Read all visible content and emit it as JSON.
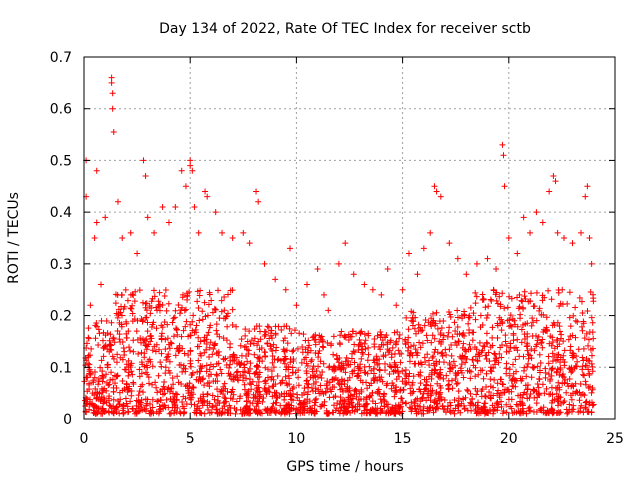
{
  "chart_data": {
    "type": "scatter",
    "title": "Day 134 of 2022, Rate Of TEC Index for receiver sctb",
    "xlabel": "GPS time / hours",
    "ylabel": "ROTI / TECUs",
    "xlim": [
      0,
      25
    ],
    "ylim": [
      0,
      0.7
    ],
    "x_ticks": [
      0,
      5,
      10,
      15,
      20,
      25
    ],
    "y_ticks": [
      0,
      0.1,
      0.2,
      0.3,
      0.4,
      0.5,
      0.6,
      0.7
    ],
    "x_tick_labels": [
      "0",
      "5",
      "10",
      "15",
      "20",
      "25"
    ],
    "y_tick_labels": [
      "0",
      "0.1",
      "0.2",
      "0.3",
      "0.4",
      "0.5",
      "0.6",
      "0.7"
    ],
    "grid": true,
    "marker": "+",
    "series_color": "#ff0000",
    "points": [
      [
        0.1,
        0.08
      ],
      [
        0.1,
        0.5
      ],
      [
        0.1,
        0.43
      ],
      [
        0.2,
        0.12
      ],
      [
        0.3,
        0.22
      ],
      [
        0.5,
        0.35
      ],
      [
        0.6,
        0.38
      ],
      [
        0.6,
        0.48
      ],
      [
        0.8,
        0.26
      ],
      [
        1.0,
        0.39
      ],
      [
        1.3,
        0.66
      ],
      [
        1.3,
        0.65
      ],
      [
        1.35,
        0.63
      ],
      [
        1.35,
        0.6
      ],
      [
        1.4,
        0.555
      ],
      [
        1.6,
        0.42
      ],
      [
        1.8,
        0.35
      ],
      [
        2.2,
        0.36
      ],
      [
        2.5,
        0.32
      ],
      [
        2.8,
        0.5
      ],
      [
        2.9,
        0.47
      ],
      [
        3.0,
        0.39
      ],
      [
        3.3,
        0.36
      ],
      [
        3.7,
        0.41
      ],
      [
        4.0,
        0.38
      ],
      [
        4.3,
        0.41
      ],
      [
        4.6,
        0.48
      ],
      [
        4.8,
        0.45
      ],
      [
        5.0,
        0.5
      ],
      [
        5.0,
        0.49
      ],
      [
        5.1,
        0.48
      ],
      [
        5.2,
        0.41
      ],
      [
        5.4,
        0.36
      ],
      [
        5.7,
        0.44
      ],
      [
        5.8,
        0.43
      ],
      [
        6.2,
        0.4
      ],
      [
        6.5,
        0.36
      ],
      [
        7.0,
        0.35
      ],
      [
        7.5,
        0.36
      ],
      [
        7.8,
        0.34
      ],
      [
        8.1,
        0.44
      ],
      [
        8.2,
        0.42
      ],
      [
        8.5,
        0.3
      ],
      [
        9.0,
        0.27
      ],
      [
        9.5,
        0.25
      ],
      [
        9.7,
        0.33
      ],
      [
        10.0,
        0.22
      ],
      [
        10.5,
        0.26
      ],
      [
        11.0,
        0.29
      ],
      [
        11.3,
        0.24
      ],
      [
        11.5,
        0.21
      ],
      [
        12.0,
        0.3
      ],
      [
        12.3,
        0.34
      ],
      [
        12.7,
        0.28
      ],
      [
        13.2,
        0.26
      ],
      [
        13.6,
        0.25
      ],
      [
        14.0,
        0.24
      ],
      [
        14.3,
        0.29
      ],
      [
        14.7,
        0.22
      ],
      [
        15.0,
        0.25
      ],
      [
        15.3,
        0.32
      ],
      [
        15.7,
        0.28
      ],
      [
        16.0,
        0.33
      ],
      [
        16.3,
        0.36
      ],
      [
        16.5,
        0.45
      ],
      [
        16.6,
        0.44
      ],
      [
        16.8,
        0.43
      ],
      [
        17.2,
        0.34
      ],
      [
        17.6,
        0.31
      ],
      [
        18.0,
        0.28
      ],
      [
        18.5,
        0.3
      ],
      [
        19.0,
        0.31
      ],
      [
        19.4,
        0.29
      ],
      [
        19.7,
        0.53
      ],
      [
        19.75,
        0.51
      ],
      [
        19.8,
        0.45
      ],
      [
        20.0,
        0.35
      ],
      [
        20.4,
        0.32
      ],
      [
        20.7,
        0.39
      ],
      [
        21.0,
        0.36
      ],
      [
        21.3,
        0.4
      ],
      [
        21.6,
        0.38
      ],
      [
        21.9,
        0.44
      ],
      [
        22.1,
        0.47
      ],
      [
        22.2,
        0.46
      ],
      [
        22.3,
        0.36
      ],
      [
        22.6,
        0.35
      ],
      [
        23.0,
        0.34
      ],
      [
        23.4,
        0.36
      ],
      [
        23.6,
        0.43
      ],
      [
        23.7,
        0.45
      ],
      [
        23.8,
        0.35
      ],
      [
        23.9,
        0.3
      ]
    ]
  }
}
